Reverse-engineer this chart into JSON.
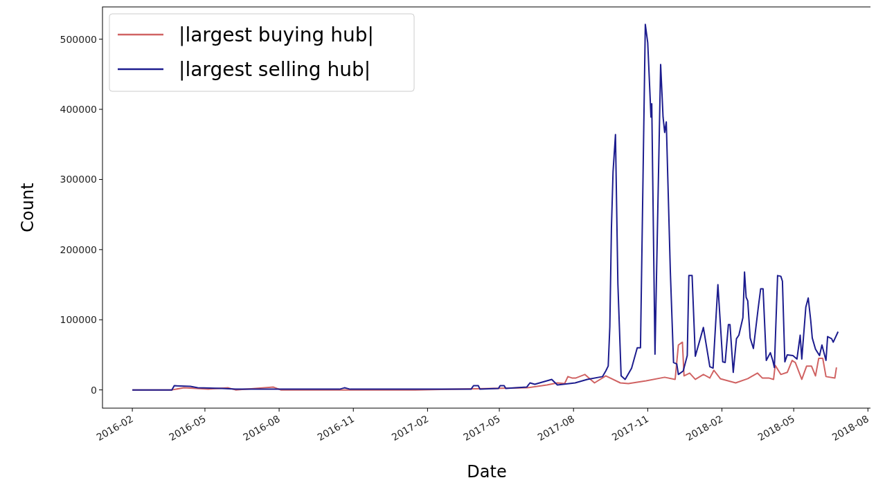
{
  "chart_data": {
    "type": "line",
    "xlabel": "Date",
    "ylabel": "Count",
    "legend": "top left",
    "grid": false,
    "xlim": [
      "2015-12-26",
      "2018-08-05"
    ],
    "ylim": [
      -26000,
      546000
    ],
    "xticks": [
      "2016-02",
      "2016-05",
      "2016-08",
      "2016-11",
      "2017-02",
      "2017-05",
      "2017-08",
      "2017-11",
      "2018-02",
      "2018-05",
      "2018-08"
    ],
    "yticks": [
      0,
      100000,
      200000,
      300000,
      400000,
      500000
    ],
    "series": [
      {
        "name": "|largest buying hub|",
        "color": "#d06262",
        "x": [
          "2016-02-01",
          "2016-03-21",
          "2016-04-05",
          "2016-05-05",
          "2016-05-30",
          "2016-06-08",
          "2016-07-25",
          "2016-08-03",
          "2017-01-17",
          "2017-06-04",
          "2017-06-29",
          "2017-07-12",
          "2017-07-21",
          "2017-07-25",
          "2017-07-30",
          "2017-08-04",
          "2017-08-15",
          "2017-08-27",
          "2017-09-10",
          "2017-09-28",
          "2017-10-08",
          "2017-10-30",
          "2017-11-22",
          "2017-12-05",
          "2017-12-09",
          "2017-12-14",
          "2017-12-16",
          "2017-12-23",
          "2017-12-30",
          "2018-01-09",
          "2018-01-17",
          "2018-01-22",
          "2018-01-30",
          "2018-02-18",
          "2018-03-05",
          "2018-03-17",
          "2018-03-23",
          "2018-03-31",
          "2018-04-06",
          "2018-04-08",
          "2018-04-15",
          "2018-04-23",
          "2018-04-29",
          "2018-05-03",
          "2018-05-11",
          "2018-05-17",
          "2018-05-23",
          "2018-05-28",
          "2018-06-01",
          "2018-06-06",
          "2018-06-10",
          "2018-06-21",
          "2018-06-23"
        ],
        "values": [
          0,
          0,
          3000,
          1000,
          3000,
          0,
          4000,
          0,
          0,
          3000,
          7000,
          10000,
          9000,
          19000,
          17000,
          17000,
          22000,
          10000,
          20000,
          10000,
          9000,
          13000,
          18000,
          15000,
          64000,
          68000,
          20000,
          24000,
          15000,
          22000,
          17000,
          28000,
          16000,
          10000,
          16000,
          24000,
          17000,
          17000,
          15000,
          35000,
          22000,
          25000,
          42000,
          39000,
          15000,
          34000,
          34000,
          20000,
          45000,
          45000,
          19000,
          17000,
          32000
        ]
      },
      {
        "name": "|largest selling hub|",
        "color": "#1c1c8e",
        "x": [
          "2016-02-01",
          "2016-03-21",
          "2016-03-24",
          "2016-04-13",
          "2016-04-22",
          "2016-05-22",
          "2016-06-08",
          "2016-10-15",
          "2016-10-21",
          "2016-10-28",
          "2017-03-27",
          "2017-03-30",
          "2017-04-05",
          "2017-04-07",
          "2017-04-30",
          "2017-05-02",
          "2017-05-07",
          "2017-05-09",
          "2017-06-04",
          "2017-06-08",
          "2017-06-14",
          "2017-07-05",
          "2017-07-12",
          "2017-08-03",
          "2017-08-18",
          "2017-09-06",
          "2017-09-10",
          "2017-09-13",
          "2017-09-15",
          "2017-09-17",
          "2017-09-19",
          "2017-09-22",
          "2017-09-25",
          "2017-09-29",
          "2017-10-04",
          "2017-10-12",
          "2017-10-19",
          "2017-10-23",
          "2017-10-29",
          "2017-11-01",
          "2017-11-04",
          "2017-11-05",
          "2017-11-06",
          "2017-11-10",
          "2017-11-17",
          "2017-11-20",
          "2017-11-22",
          "2017-11-24",
          "2017-11-29",
          "2017-12-03",
          "2017-12-07",
          "2017-12-09",
          "2017-12-15",
          "2017-12-20",
          "2017-12-22",
          "2017-12-26",
          "2017-12-30",
          "2018-01-09",
          "2018-01-17",
          "2018-01-21",
          "2018-01-27",
          "2018-02-02",
          "2018-02-05",
          "2018-02-09",
          "2018-02-11",
          "2018-02-15",
          "2018-02-19",
          "2018-02-22",
          "2018-02-27",
          "2018-03-01",
          "2018-03-03",
          "2018-03-05",
          "2018-03-08",
          "2018-03-12",
          "2018-03-18",
          "2018-03-21",
          "2018-03-24",
          "2018-03-28",
          "2018-04-02",
          "2018-04-05",
          "2018-04-07",
          "2018-04-11",
          "2018-04-15",
          "2018-04-17",
          "2018-04-20",
          "2018-04-23",
          "2018-04-30",
          "2018-05-05",
          "2018-05-09",
          "2018-05-11",
          "2018-05-16",
          "2018-05-19",
          "2018-05-22",
          "2018-05-24",
          "2018-05-28",
          "2018-06-02",
          "2018-06-05",
          "2018-06-10",
          "2018-06-12",
          "2018-06-17",
          "2018-06-19",
          "2018-06-25"
        ],
        "values": [
          0,
          0,
          6000,
          5000,
          3000,
          2000,
          1000,
          1000,
          3000,
          1000,
          1000,
          6000,
          6000,
          1000,
          2000,
          6000,
          6000,
          2000,
          4000,
          10000,
          8000,
          15000,
          7000,
          10000,
          15000,
          19000,
          27000,
          34000,
          90000,
          231000,
          311000,
          364000,
          151000,
          20000,
          15000,
          31000,
          60000,
          60000,
          521000,
          495000,
          416000,
          389000,
          408000,
          51000,
          464000,
          389000,
          367000,
          382000,
          170000,
          39000,
          37000,
          22000,
          27000,
          49000,
          163000,
          163000,
          48000,
          89000,
          33000,
          31000,
          150000,
          40000,
          39000,
          93000,
          93000,
          25000,
          73000,
          78000,
          103000,
          168000,
          132000,
          127000,
          74000,
          59000,
          117000,
          144000,
          144000,
          42000,
          53000,
          42000,
          32000,
          163000,
          162000,
          155000,
          40000,
          50000,
          49000,
          44000,
          78000,
          44000,
          118000,
          131000,
          100000,
          74000,
          58000,
          49000,
          64000,
          42000,
          76000,
          73000,
          68000,
          83000
        ]
      }
    ]
  }
}
